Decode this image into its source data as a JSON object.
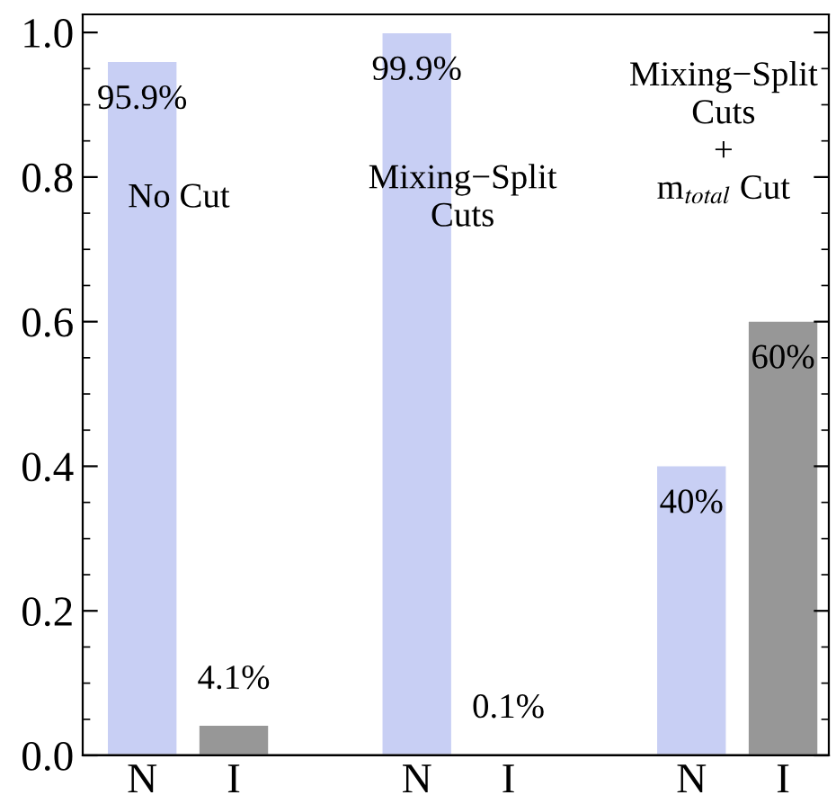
{
  "chart_data": {
    "type": "bar",
    "categories": [
      "N",
      "I",
      null,
      "N",
      "I",
      null,
      "N",
      "I"
    ],
    "values": [
      0.959,
      0.041,
      null,
      0.999,
      0.001,
      null,
      0.4,
      0.6
    ],
    "colors": [
      "#c8cff4",
      "#979797",
      null,
      "#c8cff4",
      "#979797",
      null,
      "#c8cff4",
      "#979797"
    ],
    "value_labels": [
      "95.9%",
      "4.1%",
      null,
      "99.9%",
      "0.1%",
      null,
      "40%",
      "60%"
    ],
    "annotations": [
      "No Cut",
      "Mixing−Split\nCuts",
      "Mixing−Split\nCuts\n+\nm$_{total}$ Cut"
    ],
    "ylim": [
      0,
      1.025
    ],
    "yticks": [
      {
        "value": 0,
        "label": "0.0"
      },
      0.2,
      0.4,
      0.6,
      0.8,
      {
        "value": 1,
        "label": "1.0"
      }
    ],
    "grid": false
  }
}
